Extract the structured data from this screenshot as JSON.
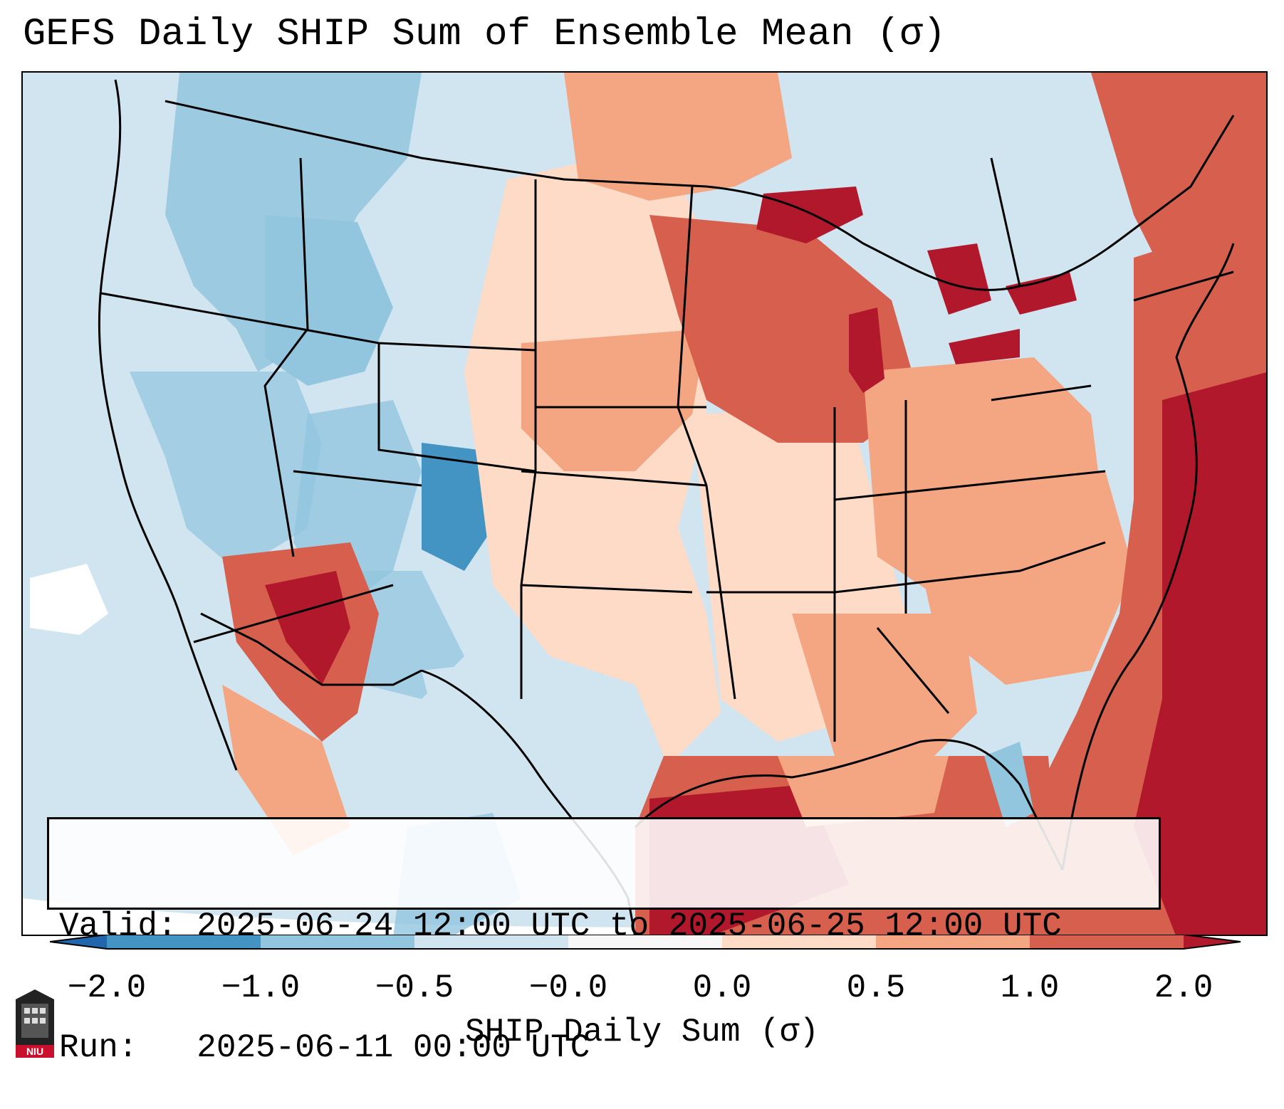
{
  "title": "GEFS Daily SHIP Sum of Ensemble Mean (σ)",
  "valid_text": "Valid: 2025-06-24 12:00 UTC to 2025-06-25 12:00 UTC",
  "run_text": "Run:   2025-06-11 00:00 UTC",
  "colorbar": {
    "label": "SHIP Daily Sum (σ)",
    "ticks": [
      "−2.0",
      "−1.0",
      "−0.5",
      "−0.0",
      "0.0",
      "0.5",
      "1.0",
      "2.0"
    ],
    "colors": {
      "extend_low": "#2166ac",
      "bin_m2_m1": "#4393c3",
      "bin_m1_m05": "#92c5de",
      "bin_m05_0": "#d1e5f0",
      "bin_0": "#f7f7f7",
      "bin_0_05": "#fddbc7",
      "bin_05_1": "#f4a582",
      "bin_1_2": "#d6604d",
      "extend_high": "#b2182b"
    }
  },
  "logo_text": "NIU"
}
